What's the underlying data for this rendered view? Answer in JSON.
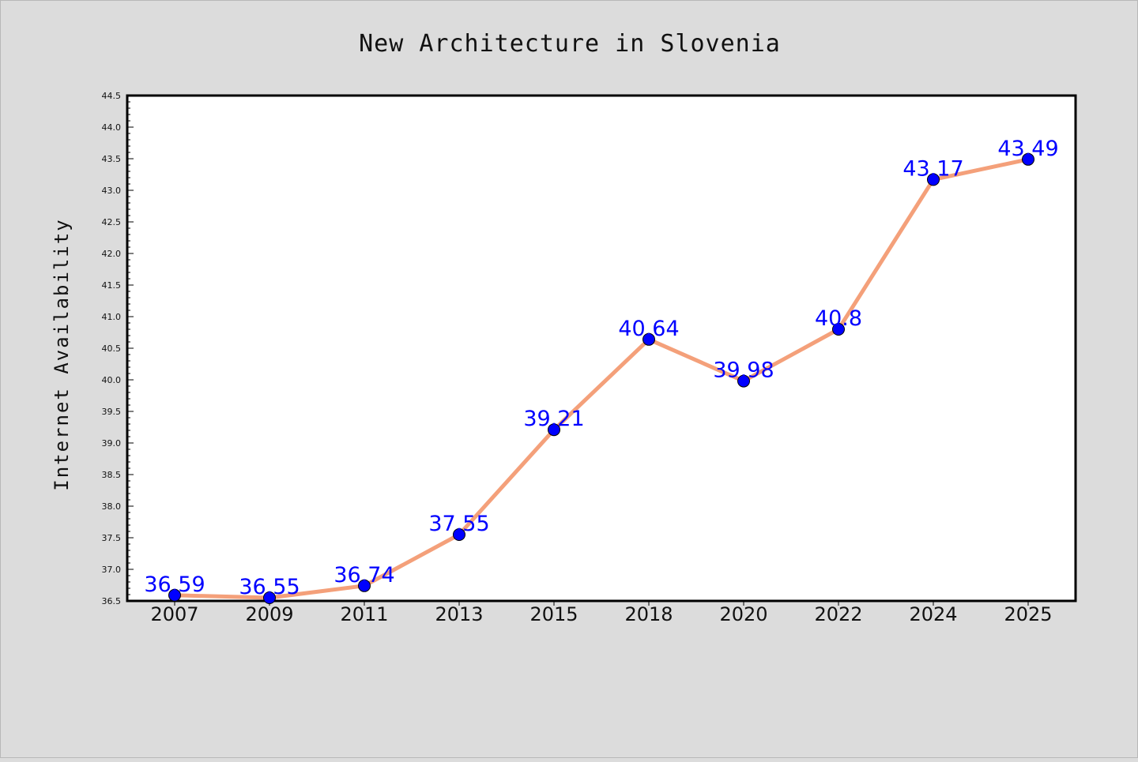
{
  "chart_data": {
    "type": "line",
    "title": "New Architecture in Slovenia",
    "xlabel": "",
    "ylabel": "Internet Availability",
    "categories": [
      "2007",
      "2009",
      "2011",
      "2013",
      "2015",
      "2018",
      "2020",
      "2022",
      "2024",
      "2025"
    ],
    "series": [
      {
        "values": [
          36.59,
          36.55,
          36.74,
          37.55,
          39.21,
          40.64,
          39.98,
          40.8,
          43.17,
          43.49
        ],
        "labels": [
          "36.59",
          "36.55",
          "36.74",
          "37.55",
          "39.21",
          "40.64",
          "39.98",
          "40.8",
          "43.17",
          "43.49"
        ],
        "line_color": "#f4a07a",
        "marker_color": "#0000ff"
      }
    ],
    "ylim": [
      36.5,
      44.5
    ],
    "yticks": [
      "36.5",
      "37.0",
      "37.5",
      "38.0",
      "38.5",
      "39.0",
      "39.5",
      "40.0",
      "40.5",
      "41.0",
      "41.5",
      "42.0",
      "42.5",
      "43.0",
      "43.5",
      "44.0",
      "44.5"
    ],
    "grid": false,
    "legend": "none",
    "background_color": "#dcdcdc",
    "plot_background": "#ffffff"
  }
}
